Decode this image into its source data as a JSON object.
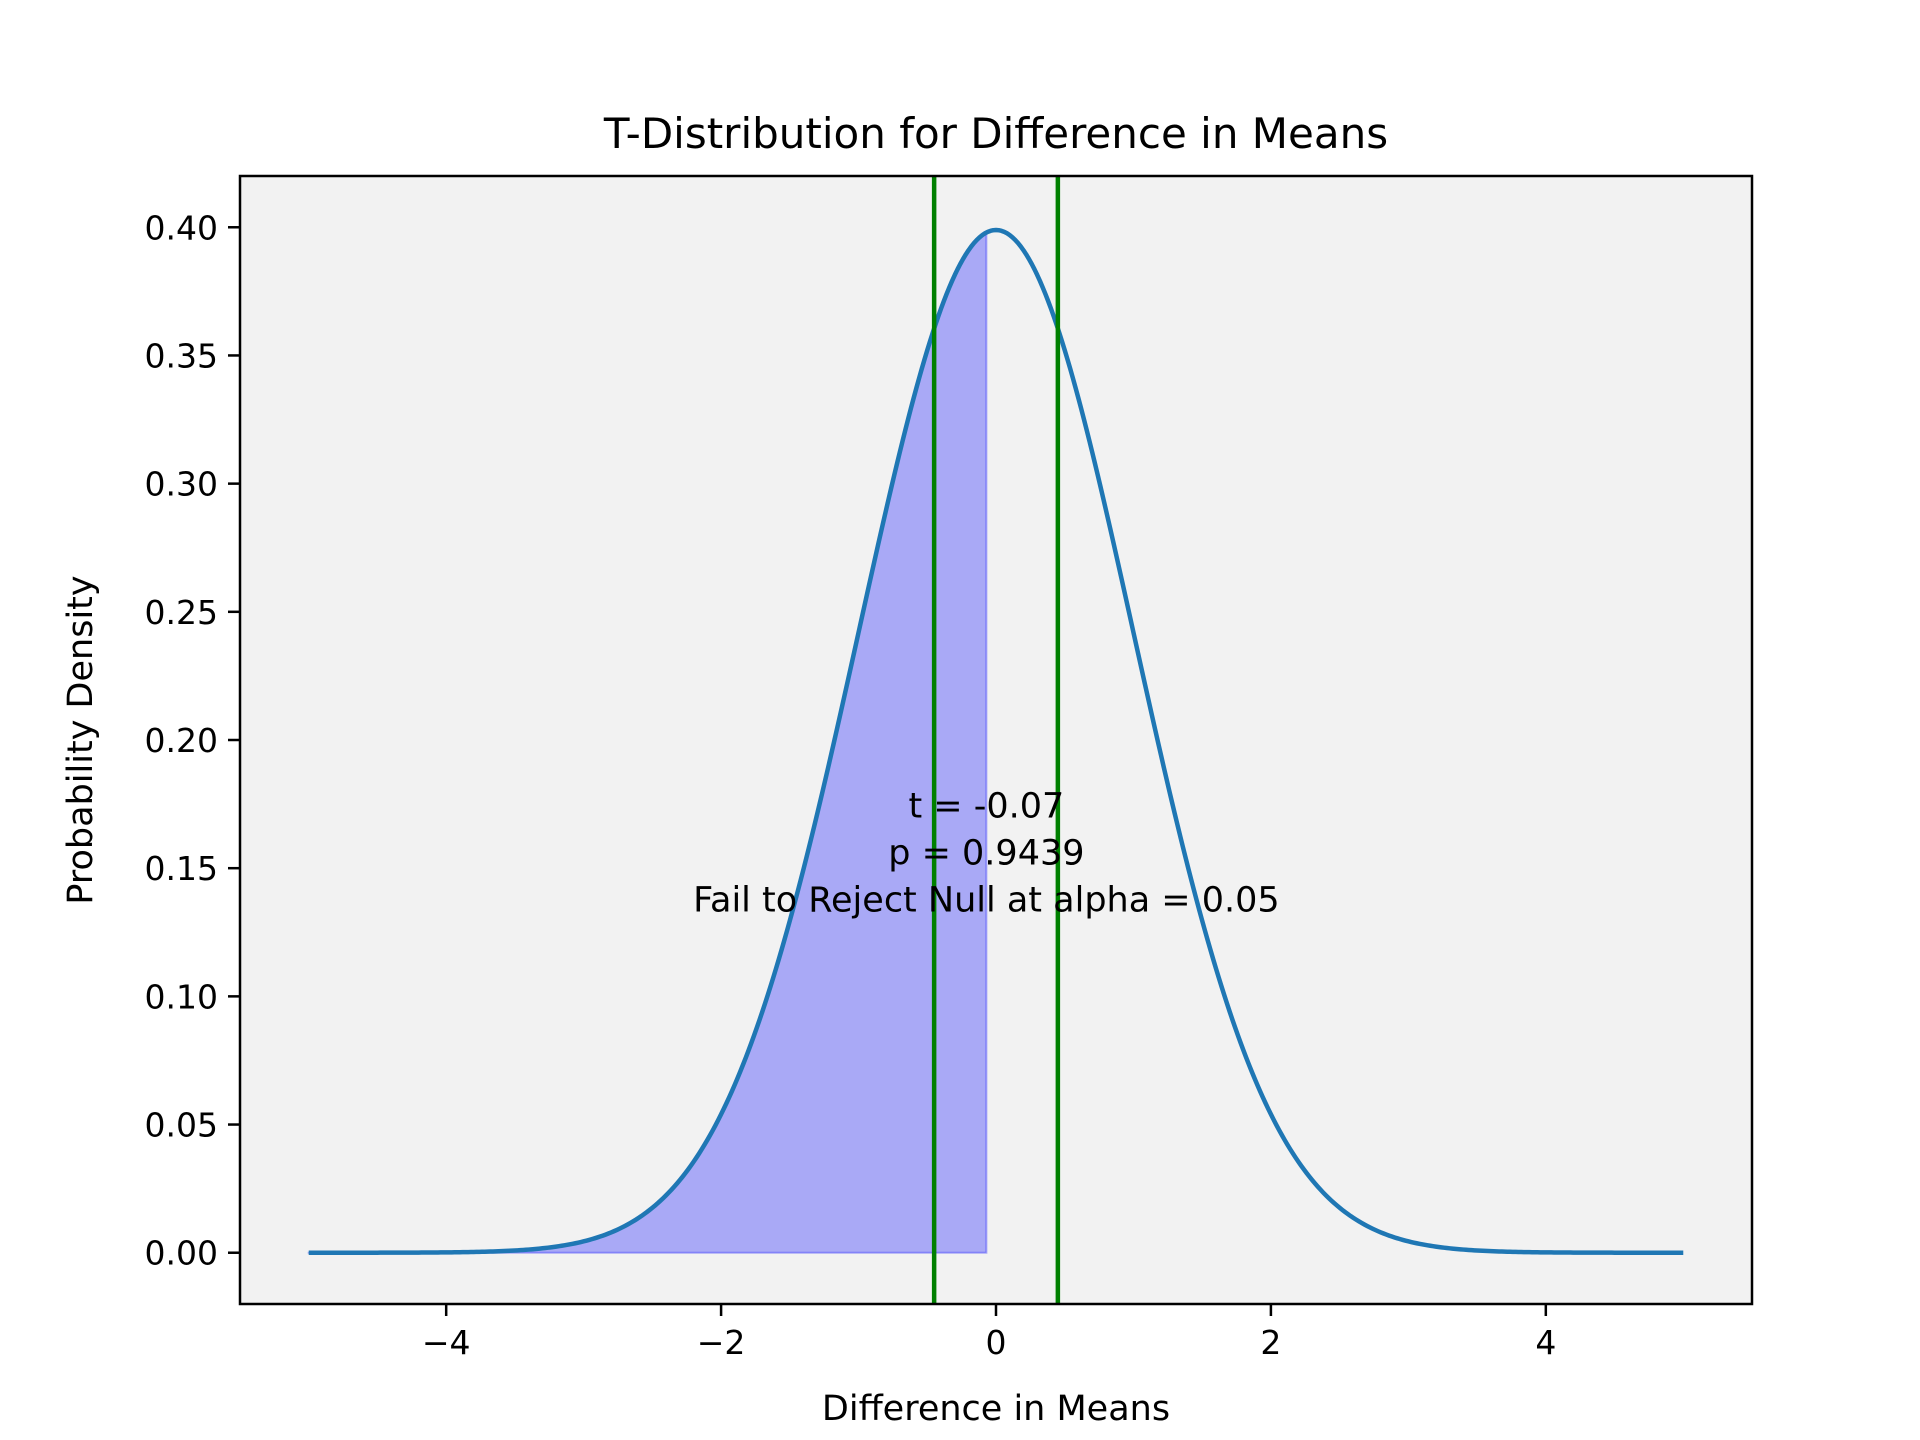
{
  "chart_data": {
    "type": "line",
    "title": "T-Distribution for Difference in Means",
    "xlabel": "Difference in Means",
    "ylabel": "Probability Density",
    "xlim": [
      -5.5,
      5.5
    ],
    "ylim": [
      -0.02,
      0.42
    ],
    "x_ticks": [
      -4,
      -2,
      0,
      2,
      4
    ],
    "x_tick_labels": [
      "−4",
      "−2",
      "0",
      "2",
      "4"
    ],
    "y_ticks": [
      0.0,
      0.05,
      0.1,
      0.15,
      0.2,
      0.25,
      0.3,
      0.35,
      0.4
    ],
    "y_tick_labels": [
      "0.00",
      "0.05",
      "0.10",
      "0.15",
      "0.20",
      "0.25",
      "0.30",
      "0.35",
      "0.40"
    ],
    "grid": false,
    "series": [
      {
        "kind": "density_curve",
        "distribution": "t",
        "df": 10000,
        "x_range": [
          -5,
          5
        ],
        "color": "#1f77b4"
      },
      {
        "kind": "shaded_area",
        "x_range": [
          -5,
          -0.07
        ],
        "color": "#0000ff",
        "alpha": 0.3
      }
    ],
    "vlines": [
      {
        "x": -0.45,
        "color": "#008000"
      },
      {
        "x": 0.45,
        "color": "#008000"
      }
    ],
    "annotation": {
      "x": -0.07,
      "y": 0.13,
      "lines": [
        "t = -0.07",
        "p = 0.9439",
        "Fail to Reject Null at alpha = 0.05"
      ]
    },
    "colors": {
      "plot_background": "#f2f2f2",
      "curve": "#1f77b4",
      "fill": "#0000ff",
      "critical_lines": "#008000"
    }
  }
}
